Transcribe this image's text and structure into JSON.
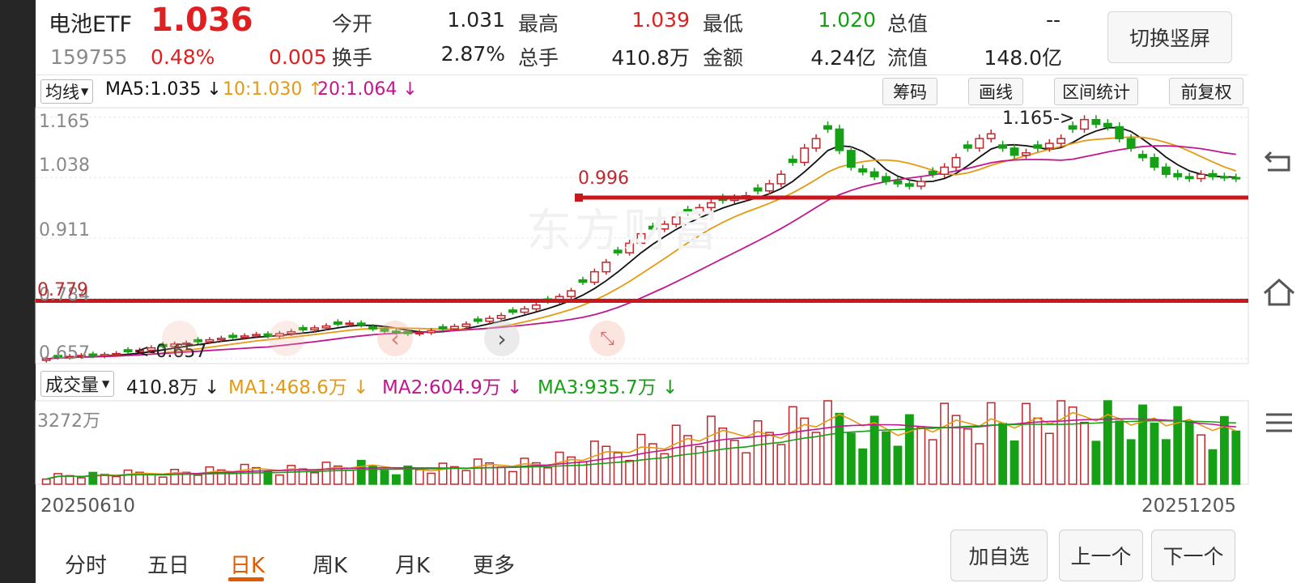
{
  "header": {
    "name": "电池ETF",
    "price": "1.036",
    "code": "159755",
    "change_pct": "0.48%",
    "change": "0.005",
    "switch_button": "切换竖屏"
  },
  "quote": {
    "open_label": "今开",
    "open": "1.031",
    "high_label": "最高",
    "high": "1.039",
    "low_label": "最低",
    "low": "1.020",
    "total_value_label": "总值",
    "total_value": "--",
    "turnover_label": "换手",
    "turnover": "2.87%",
    "volume_label": "总手",
    "volume": "410.8万",
    "amount_label": "金额",
    "amount": "4.24亿",
    "float_value_label": "流值",
    "float_value": "148.0亿"
  },
  "toolbar": {
    "ma_select": "均线",
    "ma5": "MA5:1.035 ↓",
    "ma10": "10:1.030 ↑",
    "ma20": "20:1.064 ↓",
    "chip_button": "筹码",
    "draw_button": "画线",
    "range_button": "区间统计",
    "adjust_button": "前复权"
  },
  "price_axis": [
    "1.165",
    "1.038",
    "0.911",
    "0.784",
    "0.657"
  ],
  "annotations": {
    "line_996": "0.996",
    "line_779": "0.779",
    "high_mark": "1.165->",
    "low_mark": "<-0.657"
  },
  "watermark": "东方财富",
  "volume": {
    "select": "成交量",
    "current": "410.8万 ↓",
    "ma1": "MA1:468.6万 ↓",
    "ma2": "MA2:604.9万 ↓",
    "ma3": "MA3:935.7万 ↓",
    "axis_max": "3272万"
  },
  "dates": {
    "start": "20250610",
    "end": "20251205"
  },
  "tabs": [
    "分时",
    "五日",
    "日K",
    "周K",
    "月K",
    "更多"
  ],
  "active_tab": "日K",
  "buttons": {
    "add_watch": "加自选",
    "prev": "上一个",
    "next": "下一个"
  },
  "colors": {
    "up": "#c0282d",
    "down": "#16a016",
    "ma5": "#111111",
    "ma10": "#e59a12",
    "ma20": "#c0178f",
    "vol_ma3": "#16a016"
  },
  "chart_data": {
    "type": "candlestick",
    "ylim": [
      0.647,
      1.185
    ],
    "closes": [
      0.657,
      0.66,
      0.662,
      0.664,
      0.663,
      0.666,
      0.668,
      0.672,
      0.675,
      0.68,
      0.683,
      0.688,
      0.69,
      0.693,
      0.697,
      0.7,
      0.702,
      0.705,
      0.708,
      0.705,
      0.71,
      0.714,
      0.718,
      0.722,
      0.726,
      0.73,
      0.732,
      0.728,
      0.72,
      0.715,
      0.712,
      0.71,
      0.712,
      0.716,
      0.72,
      0.725,
      0.73,
      0.736,
      0.742,
      0.748,
      0.755,
      0.762,
      0.77,
      0.778,
      0.788,
      0.8,
      0.818,
      0.84,
      0.86,
      0.88,
      0.9,
      0.92,
      0.93,
      0.94,
      0.955,
      0.965,
      0.975,
      0.985,
      0.99,
      0.995,
      1.0,
      1.01,
      1.025,
      1.045,
      1.07,
      1.1,
      1.12,
      1.14,
      1.095,
      1.06,
      1.05,
      1.04,
      1.03,
      1.025,
      1.02,
      1.03,
      1.045,
      1.06,
      1.08,
      1.1,
      1.12,
      1.13,
      1.1,
      1.085,
      1.09,
      1.1,
      1.11,
      1.12,
      1.14,
      1.16,
      1.15,
      1.145,
      1.12,
      1.1,
      1.08,
      1.06,
      1.045,
      1.04,
      1.036,
      1.045,
      1.04,
      1.038,
      1.036
    ],
    "high_value": 1.165,
    "low_value": 0.657,
    "levels": [
      0.996,
      0.779
    ],
    "volume_max": 3272
  }
}
